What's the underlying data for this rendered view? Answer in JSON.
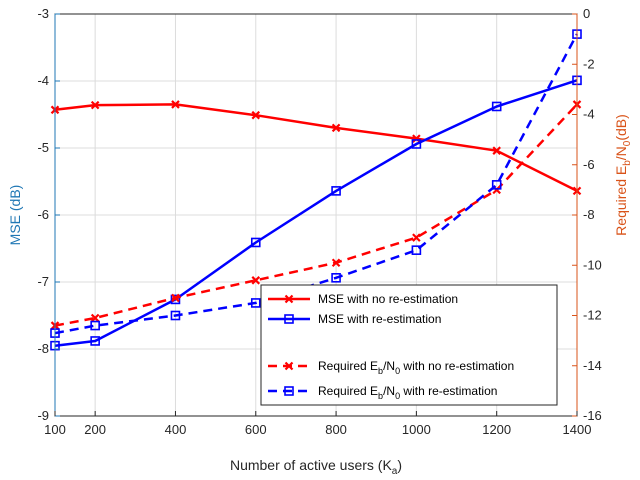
{
  "chart_data": {
    "type": "line",
    "title": "",
    "xlabel": "Number of active users (K",
    "xlabel_sub": "a",
    "xlabel_close": ")",
    "ylabel_left": "MSE (dB)",
    "ylabel_right_pre": "Required E",
    "ylabel_right_sub1": "b",
    "ylabel_right_mid": "/N",
    "ylabel_right_sub2": "0",
    "ylabel_right_post": "(dB)",
    "x": [
      100,
      200,
      400,
      600,
      800,
      1000,
      1200,
      1400
    ],
    "xlim": [
      100,
      1400
    ],
    "xticks": [
      100,
      200,
      400,
      600,
      800,
      1000,
      1200,
      1400
    ],
    "ylim_left": [
      -9,
      -3
    ],
    "yticks_left": [
      -9,
      -8,
      -7,
      -6,
      -5,
      -4,
      -3
    ],
    "ylim_right": [
      -16,
      0
    ],
    "yticks_right": [
      -16,
      -14,
      -12,
      -10,
      -8,
      -6,
      -4,
      -2,
      0
    ],
    "left_axis_color": "#1f77b4",
    "right_axis_color": "#d95319",
    "legend_position": "bottom-right",
    "series": [
      {
        "name": "MSE with no re-estimation",
        "axis": "left",
        "color": "#ff0000",
        "dash": false,
        "marker": "x",
        "values": [
          -4.43,
          -4.36,
          -4.35,
          -4.51,
          -4.7,
          -4.86,
          -5.04,
          -5.64
        ]
      },
      {
        "name": "MSE with re-estimation",
        "axis": "left",
        "color": "#0000ff",
        "dash": false,
        "marker": "square",
        "values": [
          -7.95,
          -7.88,
          -7.26,
          -6.41,
          -5.64,
          -4.94,
          -4.38,
          -3.99
        ]
      },
      {
        "name_pre": "Required E",
        "name_sub1": "b",
        "name_mid": "/N",
        "name_sub2": "0",
        "name_post": " with no re-estimation",
        "axis": "right",
        "color": "#ff0000",
        "dash": true,
        "marker": "x",
        "values": [
          -12.4,
          -12.1,
          -11.3,
          -10.6,
          -9.9,
          -8.9,
          -7.0,
          -3.6
        ]
      },
      {
        "name_pre": "Required E",
        "name_sub1": "b",
        "name_mid": "/N",
        "name_sub2": "0",
        "name_post": " with re-estimation",
        "axis": "right",
        "color": "#0000ff",
        "dash": true,
        "marker": "square",
        "values": [
          -12.7,
          -12.4,
          -12.0,
          -11.5,
          -10.5,
          -9.4,
          -6.8,
          -0.8
        ]
      }
    ]
  }
}
